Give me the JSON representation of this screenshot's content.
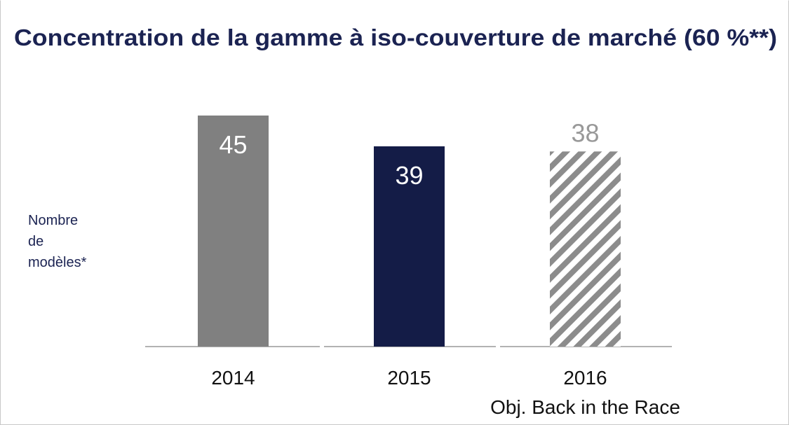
{
  "chart_data": {
    "type": "bar",
    "title": "Concentration de la gamme à iso-couverture de marché (60 %**)",
    "ylabel": "Nombre de modèles*",
    "categories": [
      "2014",
      "2015",
      "2016\nObj. Back in the Race"
    ],
    "values": [
      45,
      39,
      38
    ],
    "colors": [
      "#808080",
      "#141c47",
      "#8c8c8c"
    ],
    "hatched": [
      false,
      false,
      true
    ]
  }
}
